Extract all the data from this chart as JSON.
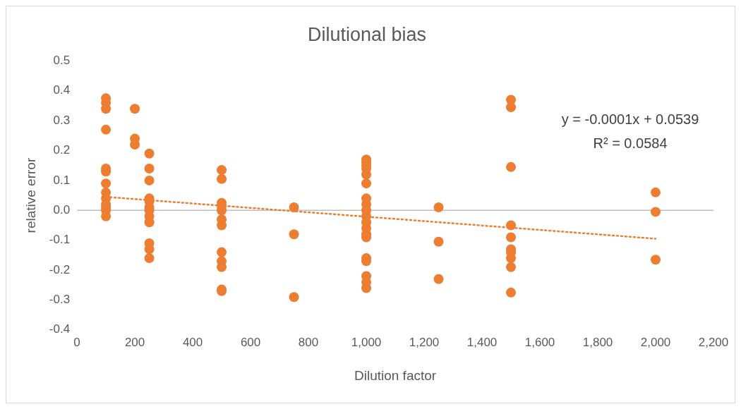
{
  "chart_data": {
    "type": "scatter",
    "title": "Dilutional bias",
    "xlabel": "Dilution factor",
    "ylabel": "relative error",
    "xlim": [
      0,
      2200
    ],
    "xticks": [
      0,
      200,
      400,
      600,
      800,
      {
        "value": 1000,
        "label": "1,000"
      },
      {
        "value": 1200,
        "label": "1,200"
      },
      {
        "value": 1400,
        "label": "1,400"
      },
      {
        "value": 1600,
        "label": "1,600"
      },
      {
        "value": 1800,
        "label": "1,800"
      },
      {
        "value": 2000,
        "label": "2,000"
      },
      {
        "value": 2200,
        "label": "2,200"
      }
    ],
    "ylim": [
      -0.4,
      0.5
    ],
    "yticks": [
      -0.4,
      -0.3,
      -0.2,
      -0.1,
      {
        "value": 0,
        "label": "0.0"
      },
      0.1,
      0.2,
      0.3,
      0.4,
      0.5
    ],
    "grid": false,
    "legend": false,
    "marker": "circle",
    "series": [
      {
        "color": "#ed7d31",
        "x": [
          100,
          100,
          100,
          100,
          100,
          100,
          100,
          100,
          100,
          100,
          100,
          100,
          100,
          200,
          200,
          200,
          250,
          250,
          250,
          250,
          250,
          250,
          250,
          250,
          250,
          250,
          250,
          250,
          500,
          500,
          500,
          500,
          500,
          500,
          500,
          500,
          500,
          500,
          500,
          500,
          750,
          750,
          750,
          1000,
          1000,
          1000,
          1000,
          1000,
          1000,
          1000,
          1000,
          1000,
          1000,
          1000,
          1000,
          1000,
          1000,
          1000,
          1000,
          1000,
          1000,
          1000,
          1250,
          1250,
          1250,
          1500,
          1500,
          1500,
          1500,
          1500,
          1500,
          1500,
          1500,
          1500,
          1500,
          2000,
          2000,
          2000
        ],
        "values": [
          0.375,
          0.36,
          0.34,
          0.27,
          0.14,
          0.13,
          0.09,
          0.06,
          0.04,
          0.02,
          0.01,
          0.0,
          -0.02,
          0.34,
          0.24,
          0.22,
          0.19,
          0.14,
          0.1,
          0.04,
          0.03,
          0.01,
          0.0,
          -0.02,
          -0.04,
          -0.11,
          -0.13,
          -0.16,
          0.135,
          0.105,
          0.025,
          0.015,
          0.0,
          -0.03,
          -0.05,
          -0.14,
          -0.17,
          -0.19,
          -0.265,
          -0.27,
          0.01,
          -0.08,
          -0.29,
          0.17,
          0.16,
          0.15,
          0.14,
          0.12,
          0.09,
          0.04,
          0.02,
          0.0,
          -0.02,
          -0.04,
          -0.06,
          -0.08,
          -0.09,
          -0.16,
          -0.17,
          -0.22,
          -0.24,
          -0.26,
          0.01,
          -0.105,
          -0.23,
          0.37,
          0.345,
          0.145,
          -0.05,
          -0.09,
          -0.13,
          -0.14,
          -0.16,
          -0.19,
          -0.275,
          0.06,
          -0.005,
          -0.165
        ]
      },
      {
        "type": "line",
        "color": "#ed7d31",
        "line_style": "dotted",
        "marker": "none",
        "x": [
          100,
          2000
        ],
        "values": [
          0.045,
          -0.095
        ]
      }
    ],
    "ref_lines": [
      {
        "axis": "y",
        "value": 0,
        "color": "#bfbfbf"
      }
    ],
    "annotations": [
      "y = -0.0001x + 0.0539",
      "R² = 0.0584"
    ]
  }
}
